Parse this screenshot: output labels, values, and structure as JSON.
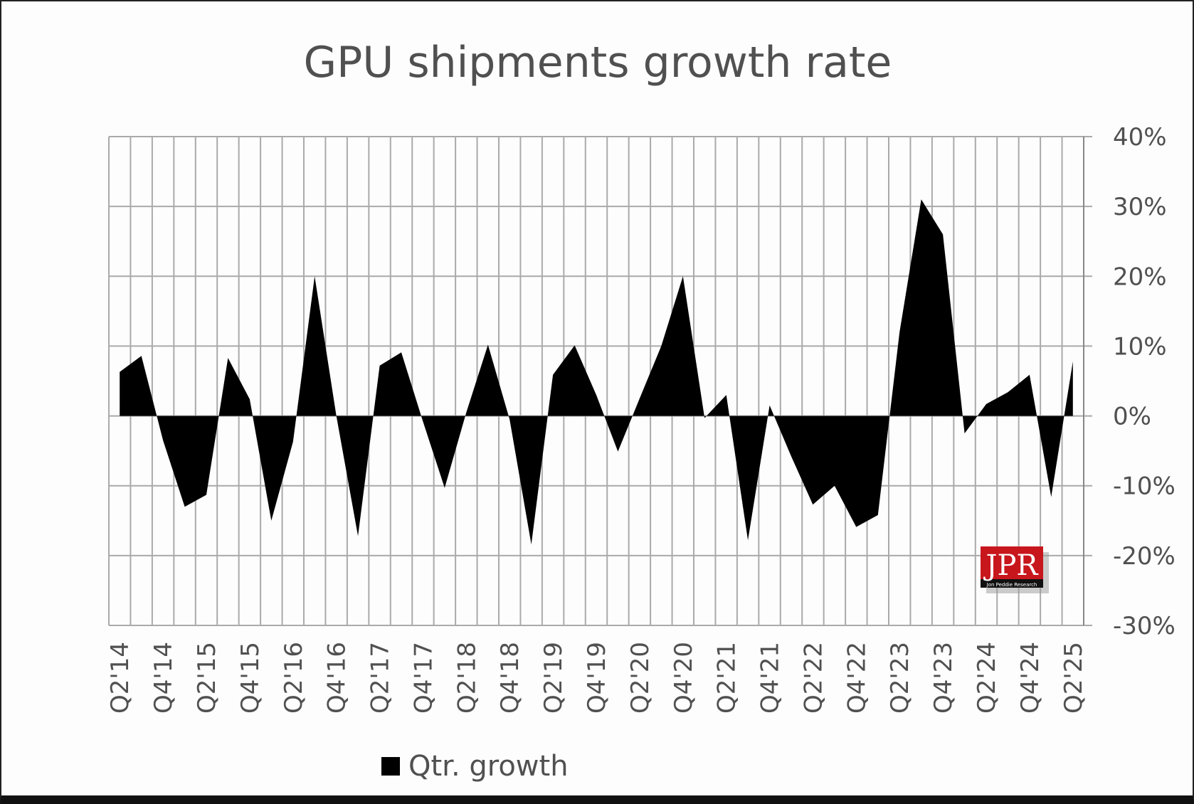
{
  "chart_data": {
    "type": "area",
    "title": "GPU shipments growth rate",
    "xlabel": "",
    "ylabel": "",
    "ylim": [
      -30,
      40
    ],
    "yticks": [
      "40%",
      "30%",
      "20%",
      "10%",
      "0%",
      "-10%",
      "-20%",
      "-30%"
    ],
    "ytick_values": [
      40,
      30,
      20,
      10,
      0,
      -10,
      -20,
      -30
    ],
    "y_axis_side": "right",
    "grid": true,
    "legend_position": "bottom",
    "categories": [
      "Q2'14",
      "Q3'14",
      "Q4'14",
      "Q1'15",
      "Q2'15",
      "Q3'15",
      "Q4'15",
      "Q1'16",
      "Q2'16",
      "Q3'16",
      "Q4'16",
      "Q1'17",
      "Q2'17",
      "Q3'17",
      "Q4'17",
      "Q1'18",
      "Q2'18",
      "Q3'18",
      "Q4'18",
      "Q1'19",
      "Q2'19",
      "Q3'19",
      "Q4'19",
      "Q1'20",
      "Q2'20",
      "Q3'20",
      "Q4'20",
      "Q1'21",
      "Q2'21",
      "Q3'21",
      "Q4'21",
      "Q1'22",
      "Q2'22",
      "Q3'22",
      "Q4'22",
      "Q1'23",
      "Q2'23",
      "Q3'23",
      "Q4'23",
      "Q1'24",
      "Q2'24",
      "Q3'24",
      "Q4'24",
      "Q1'25",
      "Q2'25"
    ],
    "xtick_labels": [
      "Q2'14",
      "Q4'14",
      "Q2'15",
      "Q4'15",
      "Q2'16",
      "Q4'16",
      "Q2'17",
      "Q4'17",
      "Q2'18",
      "Q4'18",
      "Q2'19",
      "Q4'19",
      "Q2'20",
      "Q4'20",
      "Q2'21",
      "Q4'21",
      "Q2'22",
      "Q4'22",
      "Q2'23",
      "Q4'23",
      "Q2'24",
      "Q4'24",
      "Q2'25"
    ],
    "series": [
      {
        "name": "Qtr. growth",
        "color": "#000000",
        "values": [
          6.3,
          8.6,
          -3.5,
          -13,
          -11.3,
          8.3,
          2.4,
          -15,
          -3.7,
          20,
          0,
          -17.2,
          7.2,
          9.1,
          -0.8,
          -10.3,
          0.5,
          10.2,
          -0.5,
          -18.4,
          5.9,
          10.1,
          3,
          -5.1,
          2.5,
          10,
          20,
          -0.3,
          3,
          -17.8,
          1.5,
          -5.8,
          -12.7,
          -10,
          -15.9,
          -14.2,
          12,
          31,
          26,
          -2.5,
          1.7,
          3.4,
          5.9,
          -11.6,
          7.8
        ]
      }
    ]
  },
  "logo": {
    "text": "JPR",
    "subtext": "Jon Peddie Research",
    "color": "#c8161d"
  }
}
